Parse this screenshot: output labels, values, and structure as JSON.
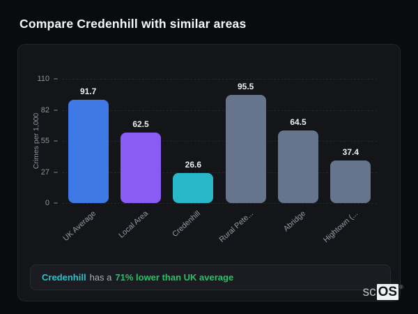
{
  "page": {
    "title": "Compare Credenhill with similar areas"
  },
  "chart_data": {
    "type": "bar",
    "categories": [
      "UK Average",
      "Local Area",
      "Credenhill",
      "Rural Pete...",
      "Abridge",
      "Hightown (..."
    ],
    "values": [
      91.7,
      62.5,
      26.6,
      95.5,
      64.5,
      37.4
    ],
    "bar_colors": [
      "#3e79e6",
      "#8a5cf5",
      "#29b8c9",
      "#66758c",
      "#66758c",
      "#66758c"
    ],
    "title": "",
    "xlabel": "",
    "ylabel": "Crimes per 1,000",
    "yticks": [
      0,
      27,
      55,
      82,
      110
    ],
    "ylim": [
      0,
      110
    ],
    "grid": "dashed-horizontal",
    "legend": "none"
  },
  "note": {
    "area": "Credenhill",
    "middle": "has a",
    "comparison": "71% lower than UK average",
    "area_color": "#2cc3cb",
    "comparison_color": "#2bc168"
  },
  "logo": {
    "prefix": "sc",
    "suffix": "OS",
    "registered": "®"
  },
  "theme": {
    "page_bg": "#0a0b0e",
    "card_bg": "#141519",
    "note_bg": "#1a1c22",
    "text_muted": "#8f959e"
  }
}
